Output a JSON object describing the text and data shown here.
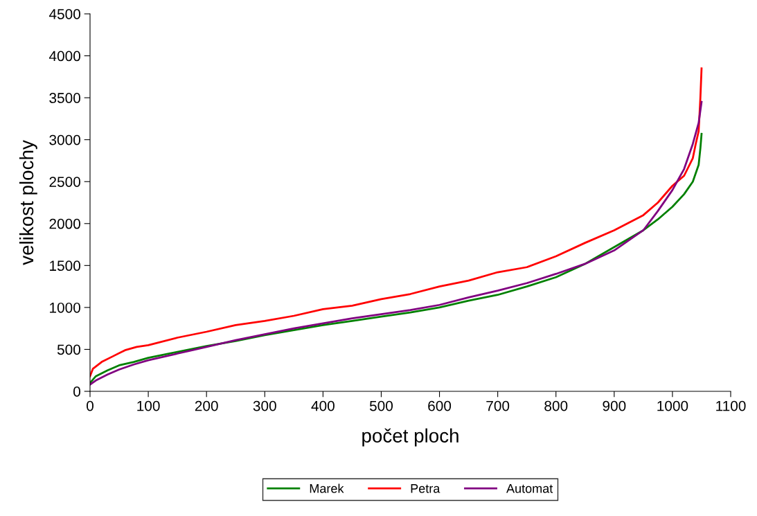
{
  "chart_data": {
    "type": "line",
    "xlabel": "počet ploch",
    "ylabel": "velikost plochy",
    "xlim": [
      0,
      1100
    ],
    "xticks": [
      0,
      100,
      200,
      300,
      400,
      500,
      600,
      700,
      800,
      900,
      1000,
      1100
    ],
    "ylim": [
      0,
      4500
    ],
    "yticks": [
      0,
      500,
      1000,
      1500,
      2000,
      2500,
      3000,
      3500,
      4000,
      4500
    ],
    "grid": false,
    "legend": "bottom",
    "marker": "none",
    "line_style": "solid",
    "series": [
      {
        "name": "Marek",
        "color": "#008000",
        "x": [
          0,
          10,
          30,
          50,
          75,
          100,
          150,
          200,
          250,
          300,
          350,
          400,
          450,
          500,
          550,
          600,
          650,
          700,
          750,
          800,
          850,
          900,
          950,
          975,
          1000,
          1020,
          1035,
          1045,
          1048,
          1050
        ],
        "values": [
          100,
          180,
          250,
          310,
          350,
          400,
          470,
          540,
          600,
          670,
          730,
          790,
          840,
          890,
          940,
          1000,
          1080,
          1150,
          1250,
          1360,
          1520,
          1720,
          1920,
          2050,
          2200,
          2350,
          2500,
          2700,
          2900,
          3070
        ]
      },
      {
        "name": "Petra",
        "color": "#ff0000",
        "x": [
          0,
          5,
          20,
          40,
          60,
          80,
          100,
          150,
          200,
          250,
          300,
          350,
          400,
          450,
          500,
          550,
          600,
          650,
          700,
          750,
          800,
          850,
          900,
          950,
          975,
          1000,
          1020,
          1035,
          1040,
          1045,
          1048,
          1050
        ],
        "values": [
          180,
          270,
          350,
          420,
          490,
          530,
          550,
          640,
          710,
          790,
          840,
          900,
          980,
          1020,
          1100,
          1160,
          1250,
          1320,
          1420,
          1480,
          1610,
          1770,
          1920,
          2100,
          2250,
          2450,
          2570,
          2780,
          2950,
          3100,
          3500,
          3850
        ]
      },
      {
        "name": "Automat",
        "color": "#800080",
        "x": [
          0,
          10,
          30,
          50,
          75,
          100,
          150,
          200,
          250,
          300,
          350,
          400,
          450,
          500,
          550,
          600,
          650,
          700,
          750,
          800,
          850,
          900,
          950,
          975,
          1000,
          1020,
          1035,
          1045,
          1050
        ],
        "values": [
          80,
          130,
          200,
          260,
          320,
          370,
          450,
          530,
          610,
          680,
          750,
          810,
          870,
          920,
          970,
          1030,
          1120,
          1200,
          1290,
          1400,
          1520,
          1680,
          1920,
          2150,
          2400,
          2650,
          2950,
          3200,
          3450
        ]
      }
    ]
  }
}
